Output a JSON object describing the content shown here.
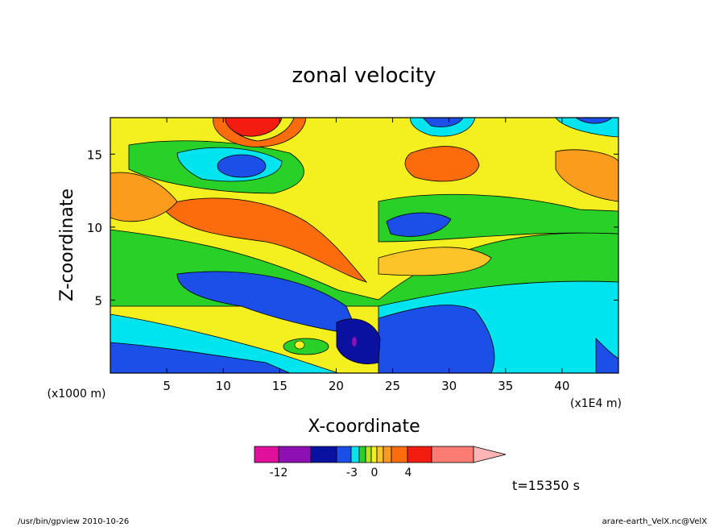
{
  "chart_data": {
    "type": "heatmap",
    "title": "zonal velocity",
    "xlabel": "X-coordinate",
    "ylabel": "Z-coordinate",
    "x_unit_label": "(x1000 m)",
    "x_scale_label": "(x1E4 m)",
    "xlim": [
      0,
      45
    ],
    "ylim": [
      0,
      17.5
    ],
    "x_ticks": [
      "5",
      "10",
      "15",
      "20",
      "25",
      "30",
      "35",
      "40"
    ],
    "y_ticks": [
      "5",
      "10",
      "15"
    ],
    "colorbar": {
      "colors": [
        "#e0109c",
        "#8c10b4",
        "#0a10a0",
        "#1c4ee8",
        "#00e4f0",
        "#28d028",
        "#b4e424",
        "#f4f020",
        "#fcc428",
        "#fc9c1c",
        "#fc6c0c",
        "#f41c10",
        "#fc7c74",
        "#fcb4b4"
      ],
      "tick_labels": [
        "-12",
        "-3",
        "0",
        "4"
      ]
    },
    "time_label": "t=15350 s",
    "footer_left": "/usr/bin/gpview  2010-10-26",
    "footer_right": "arare-earth_VelX.nc@VelX"
  }
}
